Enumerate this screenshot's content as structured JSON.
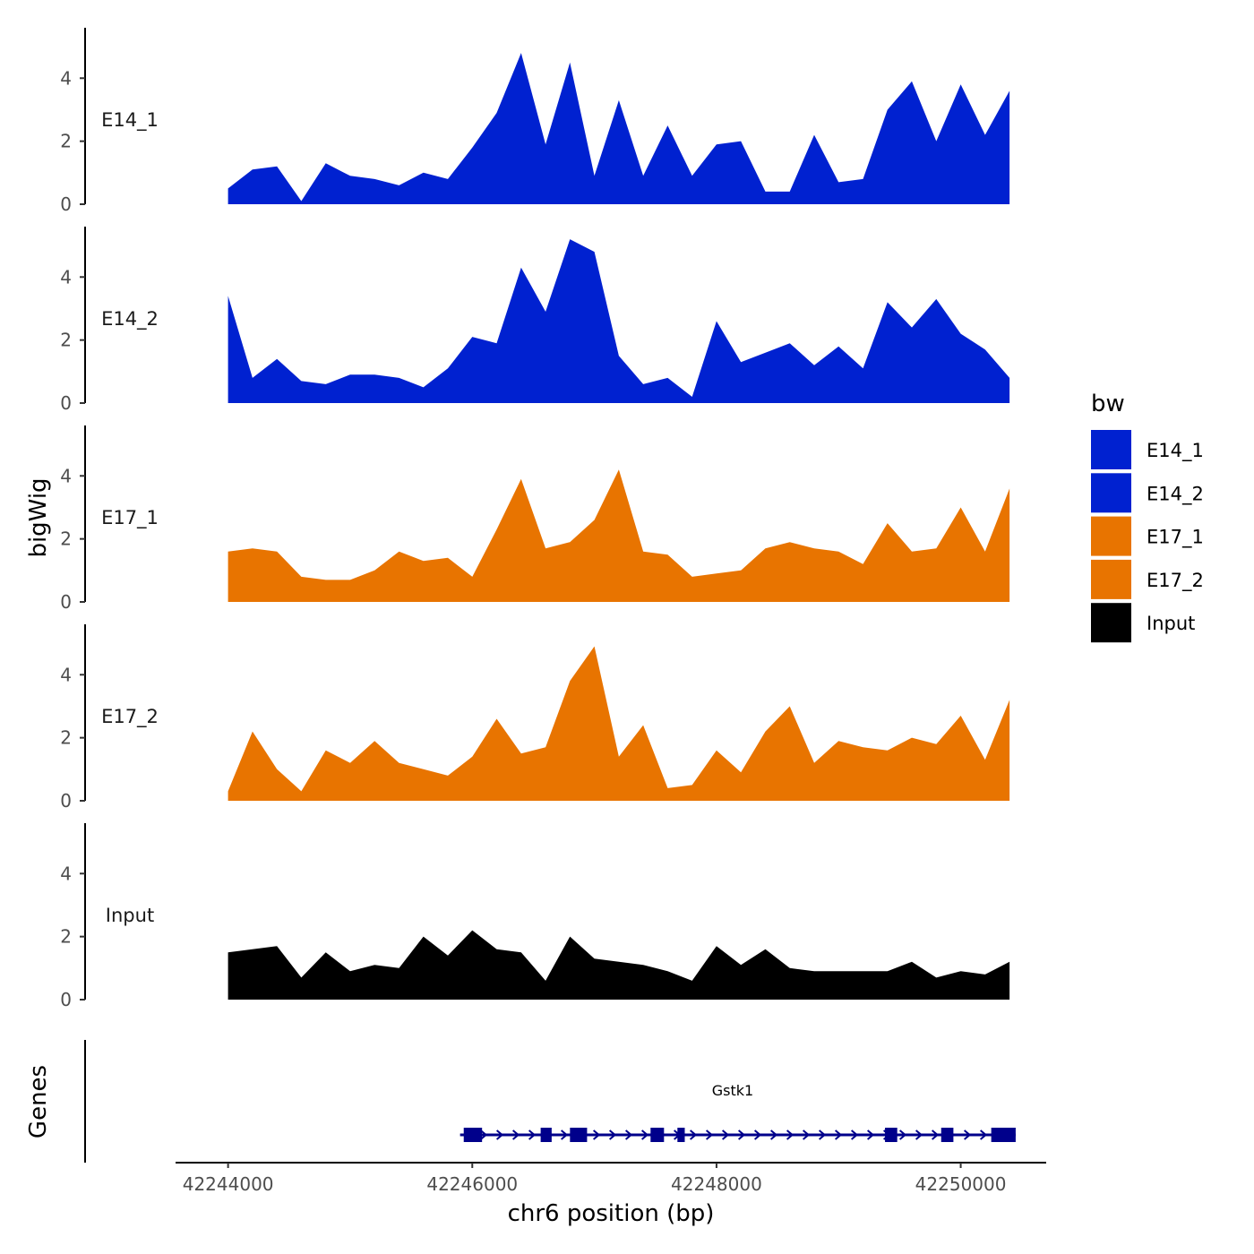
{
  "chart_data": {
    "type": "area",
    "ylabel": "bigWig",
    "xlabel": "chr6 position (bp)",
    "genes_label": "Genes",
    "ylim": [
      0,
      5.6
    ],
    "y_ticks": [
      0,
      2,
      4
    ],
    "y_tick_labels": [
      "0",
      "2",
      "4"
    ],
    "xlim": [
      42243570,
      42250700
    ],
    "x_ticks": [
      42244000,
      42246000,
      42248000,
      42250000
    ],
    "x_tick_labels": [
      "42244000",
      "42246000",
      "42248000",
      "42250000"
    ],
    "x": [
      42244000,
      42244200,
      42244400,
      42244600,
      42244800,
      42245000,
      42245200,
      42245400,
      42245600,
      42245800,
      42246000,
      42246200,
      42246400,
      42246600,
      42246800,
      42247000,
      42247200,
      42247400,
      42247600,
      42247800,
      42248000,
      42248200,
      42248400,
      42248600,
      42248800,
      42249000,
      42249200,
      42249400,
      42249600,
      42249800,
      42250000,
      42250200,
      42250400
    ],
    "series": [
      {
        "name": "E14_1",
        "color": "#0021d0",
        "values": [
          0.5,
          1.1,
          1.2,
          0.1,
          1.3,
          0.9,
          0.8,
          0.6,
          1.0,
          0.8,
          1.8,
          2.9,
          4.8,
          1.9,
          4.5,
          0.9,
          3.3,
          0.9,
          2.5,
          0.9,
          1.9,
          2.0,
          0.4,
          0.4,
          2.2,
          0.7,
          0.8,
          3.0,
          3.9,
          2.0,
          3.8,
          2.2,
          3.6
        ]
      },
      {
        "name": "E14_2",
        "color": "#0021d0",
        "values": [
          3.4,
          0.8,
          1.4,
          0.7,
          0.6,
          0.9,
          0.9,
          0.8,
          0.5,
          1.1,
          2.1,
          1.9,
          4.3,
          2.9,
          5.2,
          4.8,
          1.5,
          0.6,
          0.8,
          0.2,
          2.6,
          1.3,
          1.6,
          1.9,
          1.2,
          1.8,
          1.1,
          3.2,
          2.4,
          3.3,
          2.2,
          1.7,
          0.8
        ]
      },
      {
        "name": "E17_1",
        "color": "#e87400",
        "values": [
          1.6,
          1.7,
          1.6,
          0.8,
          0.7,
          0.7,
          1.0,
          1.6,
          1.3,
          1.4,
          0.8,
          2.3,
          3.9,
          1.7,
          1.9,
          2.6,
          4.2,
          1.6,
          1.5,
          0.8,
          0.9,
          1.0,
          1.7,
          1.9,
          1.7,
          1.6,
          1.2,
          2.5,
          1.6,
          1.7,
          3.0,
          1.6,
          3.6
        ]
      },
      {
        "name": "E17_2",
        "color": "#e87400",
        "values": [
          0.3,
          2.2,
          1.0,
          0.3,
          1.6,
          1.2,
          1.9,
          1.2,
          1.0,
          0.8,
          1.4,
          2.6,
          1.5,
          1.7,
          3.8,
          4.9,
          1.4,
          2.4,
          0.4,
          0.5,
          1.6,
          0.9,
          2.2,
          3.0,
          1.2,
          1.9,
          1.7,
          1.6,
          2.0,
          1.8,
          2.7,
          1.3,
          3.2
        ]
      },
      {
        "name": "Input",
        "color": "#000000",
        "values": [
          1.5,
          1.6,
          1.7,
          0.7,
          1.5,
          0.9,
          1.1,
          1.0,
          2.0,
          1.4,
          2.2,
          1.6,
          1.5,
          0.6,
          2.0,
          1.3,
          1.2,
          1.1,
          0.9,
          0.6,
          1.7,
          1.1,
          1.6,
          1.0,
          0.9,
          0.9,
          0.9,
          0.9,
          1.2,
          0.7,
          0.9,
          0.8,
          1.2
        ]
      }
    ],
    "legend": {
      "title": "bw",
      "entries": [
        {
          "label": "E14_1",
          "color": "#0021d0"
        },
        {
          "label": "E14_2",
          "color": "#0021d0"
        },
        {
          "label": "E17_1",
          "color": "#e87400"
        },
        {
          "label": "E17_2",
          "color": "#e87400"
        },
        {
          "label": "Input",
          "color": "#000000"
        }
      ]
    },
    "gene": {
      "name": "Gstk1",
      "color": "#00008b",
      "strand": "+",
      "start": 42245900,
      "end": 42250450,
      "exons": [
        [
          42245930,
          42246080
        ],
        [
          42246560,
          42246650
        ],
        [
          42246800,
          42246940
        ],
        [
          42247460,
          42247570
        ],
        [
          42247680,
          42247740
        ],
        [
          42249380,
          42249480
        ],
        [
          42249840,
          42249940
        ],
        [
          42250250,
          42250450
        ]
      ]
    }
  }
}
